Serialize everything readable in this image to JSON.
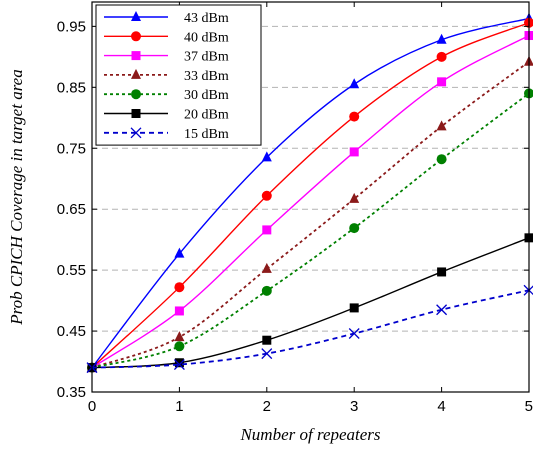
{
  "chart_data": {
    "type": "line",
    "title": "",
    "xlabel": "Number of repeaters",
    "ylabel": "Prob CPICH Coverage  in target area",
    "xlim": [
      0,
      5
    ],
    "ylim": [
      0.35,
      0.99
    ],
    "x_ticks": [
      "0",
      "1",
      "2",
      "3",
      "4",
      "5"
    ],
    "y_ticks": [
      "0.35",
      "0.45",
      "0.55",
      "0.65",
      "0.75",
      "0.85",
      "0.95"
    ],
    "grid": "horizontal dashed",
    "legend_position": "top-left",
    "x": [
      0,
      1,
      2,
      3,
      4,
      5
    ],
    "series": [
      {
        "name": "43 dBm",
        "color": "#0000ff",
        "marker": "triangle",
        "line": "solid",
        "values": [
          0.39,
          0.577,
          0.735,
          0.855,
          0.928,
          0.963
        ]
      },
      {
        "name": "40 dBm",
        "color": "#ff0000",
        "marker": "circle",
        "line": "solid",
        "values": [
          0.39,
          0.522,
          0.672,
          0.802,
          0.9,
          0.956
        ]
      },
      {
        "name": "37 dBm",
        "color": "#ff00ff",
        "marker": "square",
        "line": "solid",
        "values": [
          0.39,
          0.483,
          0.616,
          0.744,
          0.859,
          0.935
        ]
      },
      {
        "name": "33 dBm",
        "color": "#8b1a1a",
        "marker": "triangle",
        "line": "dotted",
        "values": [
          0.39,
          0.44,
          0.552,
          0.667,
          0.786,
          0.892
        ]
      },
      {
        "name": "30 dBm",
        "color": "#008000",
        "marker": "circle",
        "line": "dotted",
        "values": [
          0.39,
          0.425,
          0.516,
          0.619,
          0.732,
          0.84
        ]
      },
      {
        "name": "20 dBm",
        "color": "#000000",
        "marker": "square",
        "line": "solid",
        "values": [
          0.39,
          0.398,
          0.435,
          0.488,
          0.547,
          0.603
        ]
      },
      {
        "name": "15 dBm",
        "color": "#0000cc",
        "marker": "x",
        "line": "dashed",
        "values": [
          0.39,
          0.395,
          0.413,
          0.446,
          0.485,
          0.517
        ]
      }
    ]
  }
}
